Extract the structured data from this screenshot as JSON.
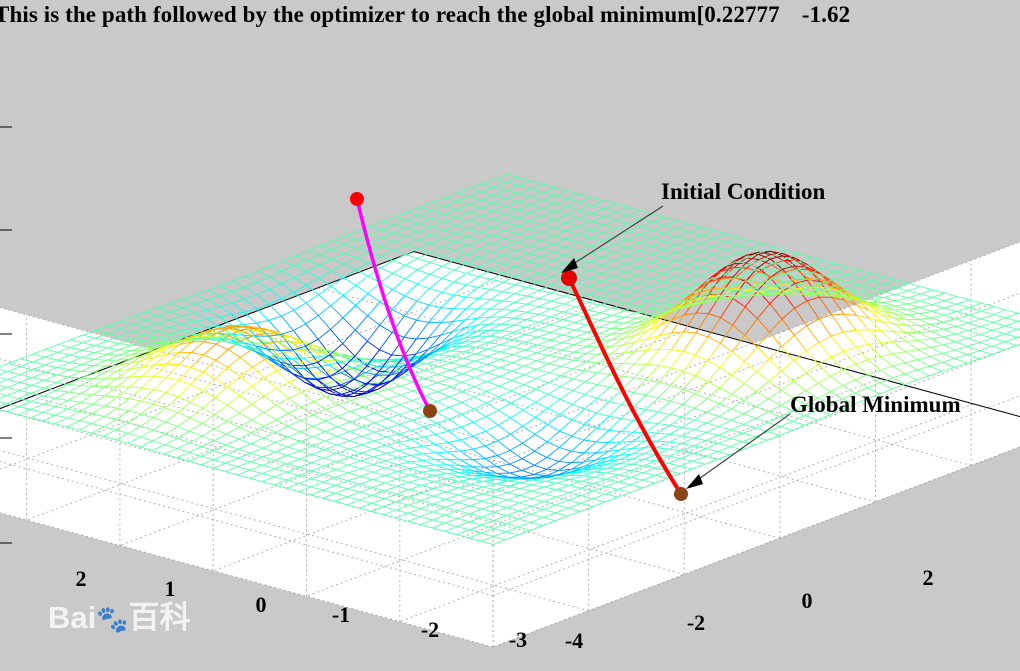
{
  "title": {
    "text": "This is the path followed by the optimizer to reach the global minimum[0.22777",
    "value2": "-1.62"
  },
  "watermark": {
    "brand": "Bai",
    "suffix": "百科"
  },
  "colors": {
    "background": "#c9c9c9",
    "axes_panel": "#ffffff",
    "magenta_path": "#ff00ff",
    "red_path": "#ff0000",
    "marker": "#8b4513"
  },
  "chart_data": {
    "type": "surface",
    "grid": true,
    "x_tick_labels": [
      "2",
      "1",
      "0",
      "-1",
      "-2",
      "-3"
    ],
    "y_tick_labels": [
      "-4",
      "-2",
      "0",
      "2"
    ],
    "annotations": [
      {
        "label": "Initial Condition"
      },
      {
        "label": "Global Minimum"
      }
    ],
    "surface": {
      "colormap": "jet",
      "peaks": [
        {
          "x": -1.2,
          "y": 1.6,
          "height": 1.0
        },
        {
          "x": 1.6,
          "y": -1.2,
          "height": 0.55
        }
      ],
      "wells": [
        {
          "x": 1.0,
          "y": 1.4,
          "depth": 0.4
        },
        {
          "x": -0.1,
          "y": -1.7,
          "depth": 0.8
        }
      ]
    }
  }
}
